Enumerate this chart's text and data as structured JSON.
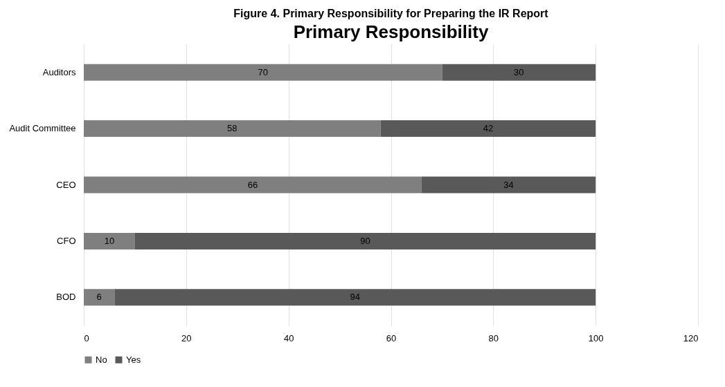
{
  "chart_data": {
    "type": "bar",
    "orientation": "horizontal",
    "stacked": true,
    "title": "Primary Responsibility",
    "annotations": [
      "Figure 4. Primary Responsibility for Preparing the IR Report"
    ],
    "categories": [
      "Auditors",
      "Audit Committee",
      "CEO",
      "CFO",
      "BOD"
    ],
    "series": [
      {
        "name": "No",
        "color": "#7f7f7f",
        "values": [
          70,
          58,
          66,
          10,
          6
        ]
      },
      {
        "name": "Yes",
        "color": "#595959",
        "values": [
          30,
          42,
          34,
          90,
          94
        ]
      }
    ],
    "xlim": [
      0,
      120
    ],
    "xticks": [
      0,
      20,
      40,
      60,
      80,
      100,
      120
    ],
    "grid": "x",
    "legend": "bottom",
    "data_labels": true
  }
}
